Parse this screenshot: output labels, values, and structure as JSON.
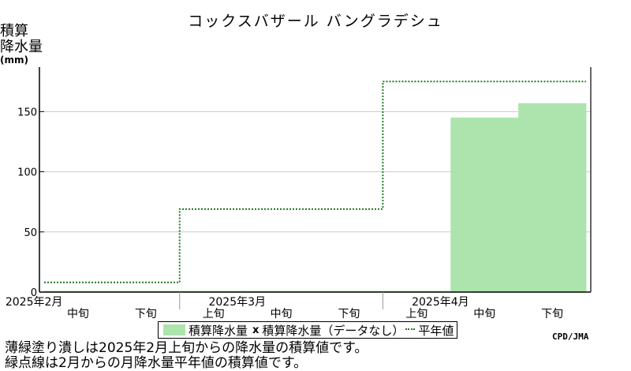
{
  "title": "コックスバザール バングラデシュ",
  "ylabel_line1": "積算",
  "ylabel_line2": "降水量",
  "ylabel_unit": "(mm)",
  "legend": {
    "fill_label": "積算降水量",
    "nodata_marker": "x",
    "nodata_label": "積算降水量（データなし）",
    "normal_label": "平年値"
  },
  "credit": "CPD/JMA",
  "notes": [
    "薄緑塗り潰しは2025年2月上旬からの降水量の積算値です。",
    "緑点線は2月からの月降水量平年値の積算値です。"
  ],
  "colors": {
    "fill": "#ade4ad",
    "normal_line": "#1e7a1e",
    "grid": "#cccccc"
  },
  "chart_data": {
    "type": "area",
    "ylabel": "積算 降水量 (mm)",
    "ylim": [
      0,
      185
    ],
    "yticks": [
      0,
      50,
      100,
      150
    ],
    "grid": true,
    "legend_position": "bottom",
    "periods": [
      "2月中旬",
      "2月下旬",
      "3月上旬",
      "3月中旬",
      "3月下旬",
      "4月上旬",
      "4月中旬",
      "4月下旬"
    ],
    "x_labels": [
      "中旬",
      "下旬",
      "上旬",
      "中旬",
      "下旬",
      "上旬",
      "中旬",
      "下旬"
    ],
    "month_labels": [
      {
        "label": "2025年2月",
        "at": 0
      },
      {
        "label": "2025年3月",
        "at": 3
      },
      {
        "label": "2025年4月",
        "at": 6
      }
    ],
    "month_boundaries": [
      2,
      5
    ],
    "series": [
      {
        "name": "積算降水量",
        "values": [
          1,
          1,
          1,
          1,
          1,
          1,
          145,
          157
        ]
      },
      {
        "name": "平年値",
        "values": [
          8,
          8,
          69,
          69,
          69,
          175,
          175,
          175
        ]
      }
    ]
  }
}
